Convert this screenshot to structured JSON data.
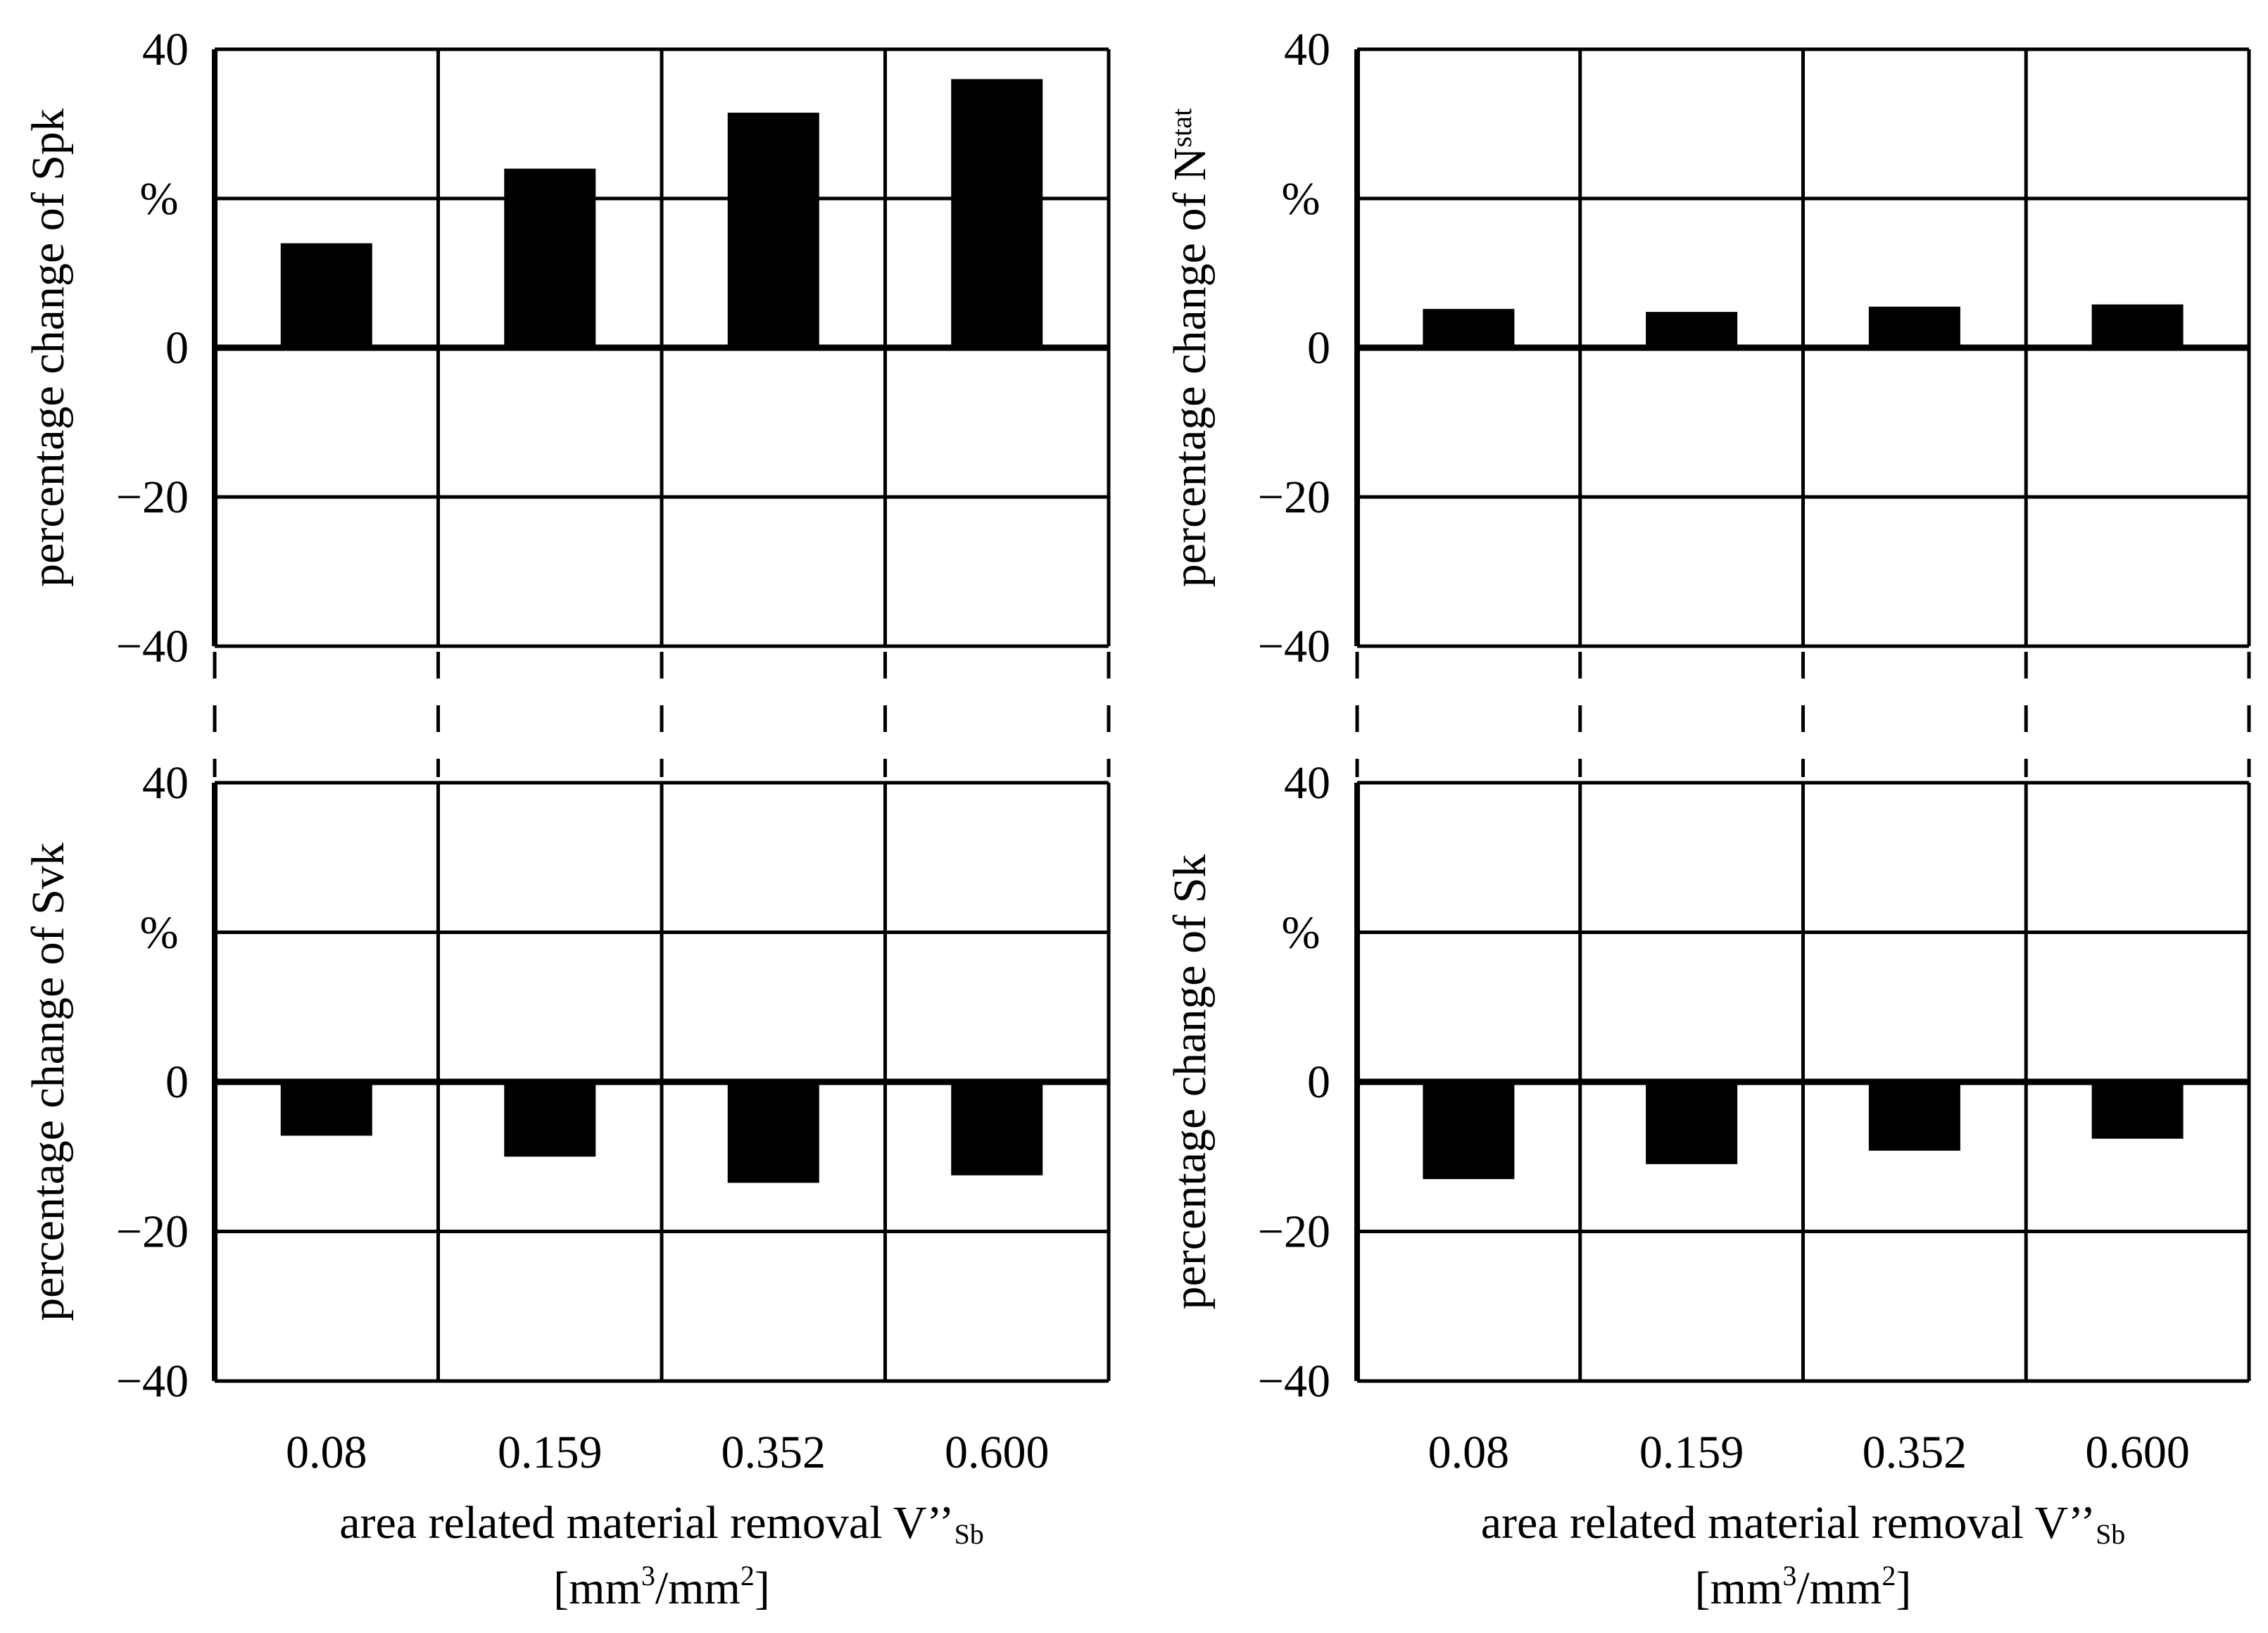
{
  "chart_data": [
    {
      "type": "bar",
      "position": "top-left",
      "ylabel": {
        "main": "percentage change of Spk",
        "unit": "%"
      },
      "categories": [
        "0.08",
        "0.159",
        "0.352",
        "0.600"
      ],
      "values": [
        14,
        24,
        31.5,
        36
      ],
      "ylim": [
        -40,
        40
      ],
      "ytick_labels": [
        "40",
        "",
        "0",
        "−20",
        "−40"
      ],
      "grid": true
    },
    {
      "type": "bar",
      "position": "top-right",
      "ylabel": {
        "main": "percentage change of N",
        "sub": "stat",
        "unit": "%"
      },
      "categories": [
        "0.08",
        "0.159",
        "0.352",
        "0.600"
      ],
      "values": [
        5.2,
        4.8,
        5.5,
        5.8
      ],
      "ylim": [
        -40,
        40
      ],
      "ytick_labels": [
        "40",
        "",
        "0",
        "−20",
        "−40"
      ],
      "grid": true
    },
    {
      "type": "bar",
      "position": "bottom-left",
      "ylabel": {
        "main": "percentage change of Svk",
        "unit": "%"
      },
      "categories": [
        "0.08",
        "0.159",
        "0.352",
        "0.600"
      ],
      "values": [
        -7.2,
        -10,
        -13.5,
        -12.5
      ],
      "ylim": [
        -40,
        40
      ],
      "ytick_labels": [
        "40",
        "",
        "0",
        "−20",
        "−40"
      ],
      "grid": true
    },
    {
      "type": "bar",
      "position": "bottom-right",
      "ylabel": {
        "main": "percentage change of Sk",
        "unit": "%"
      },
      "categories": [
        "0.08",
        "0.159",
        "0.352",
        "0.600"
      ],
      "values": [
        -13,
        -11,
        -9.2,
        -7.6
      ],
      "ylim": [
        -40,
        40
      ],
      "ytick_labels": [
        "40",
        "",
        "0",
        "−20",
        "−40"
      ],
      "grid": true
    }
  ],
  "xaxis": {
    "label_line1": "area related material removal V’’",
    "label_line1_sub": "Sb",
    "label_line2_open": "[mm",
    "label_line2_sup1": "3",
    "label_line2_mid": "/mm",
    "label_line2_sup2": "2",
    "label_line2_close": "]"
  }
}
